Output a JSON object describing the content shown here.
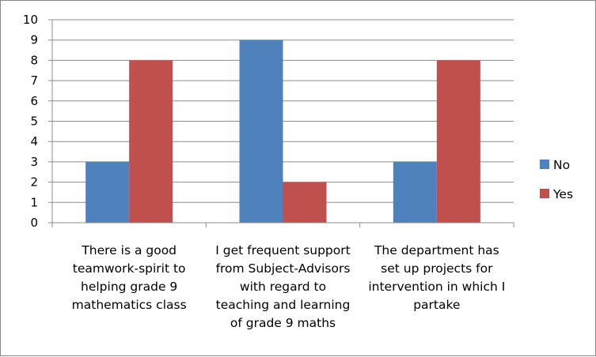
{
  "chart_data": {
    "type": "bar",
    "categories": [
      [
        "There is a good",
        "teamwork-spirit to",
        "helping grade 9",
        "mathematics class"
      ],
      [
        "I get frequent support",
        "from Subject-Advisors",
        "with regard to",
        "teaching and learning",
        "of grade 9 maths"
      ],
      [
        "The department has",
        "set up projects for",
        "intervention in which I",
        "partake"
      ]
    ],
    "series": [
      {
        "name": "No",
        "values": [
          3,
          9,
          3
        ],
        "color": "#4F81BD"
      },
      {
        "name": "Yes",
        "values": [
          8,
          2,
          8
        ],
        "color": "#C0504D"
      }
    ],
    "ylim": [
      0,
      10
    ],
    "yticks": [
      "0",
      "1",
      "2",
      "3",
      "4",
      "5",
      "6",
      "7",
      "8",
      "9",
      "10"
    ],
    "grid": true,
    "legend_position": "right"
  }
}
